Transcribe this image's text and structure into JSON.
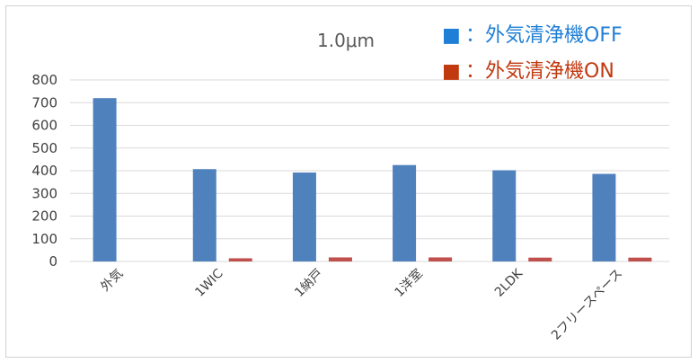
{
  "chart_data": {
    "type": "bar",
    "title": "1.0μm",
    "categories": [
      "外気",
      "1WIC",
      "1納戸",
      "1洋室",
      "2LDK",
      "2フリースペース"
    ],
    "series": [
      {
        "name": "：外気清浄機OFF",
        "color": "#4f81bd",
        "values": [
          720,
          407,
          392,
          425,
          402,
          386
        ]
      },
      {
        "name": "：外気清浄機ON",
        "color": "#c0504d",
        "values": [
          0,
          14,
          18,
          18,
          17,
          17
        ]
      }
    ],
    "legend_markers": [
      "■",
      "■"
    ],
    "legend_colors": [
      "#1f7fd6",
      "#c0390f"
    ],
    "ylim": [
      0,
      800
    ],
    "yticks": [
      0,
      100,
      200,
      300,
      400,
      500,
      600,
      700,
      800
    ],
    "xlabel": "",
    "ylabel": "",
    "grid": true,
    "legend_position": "top-right"
  }
}
